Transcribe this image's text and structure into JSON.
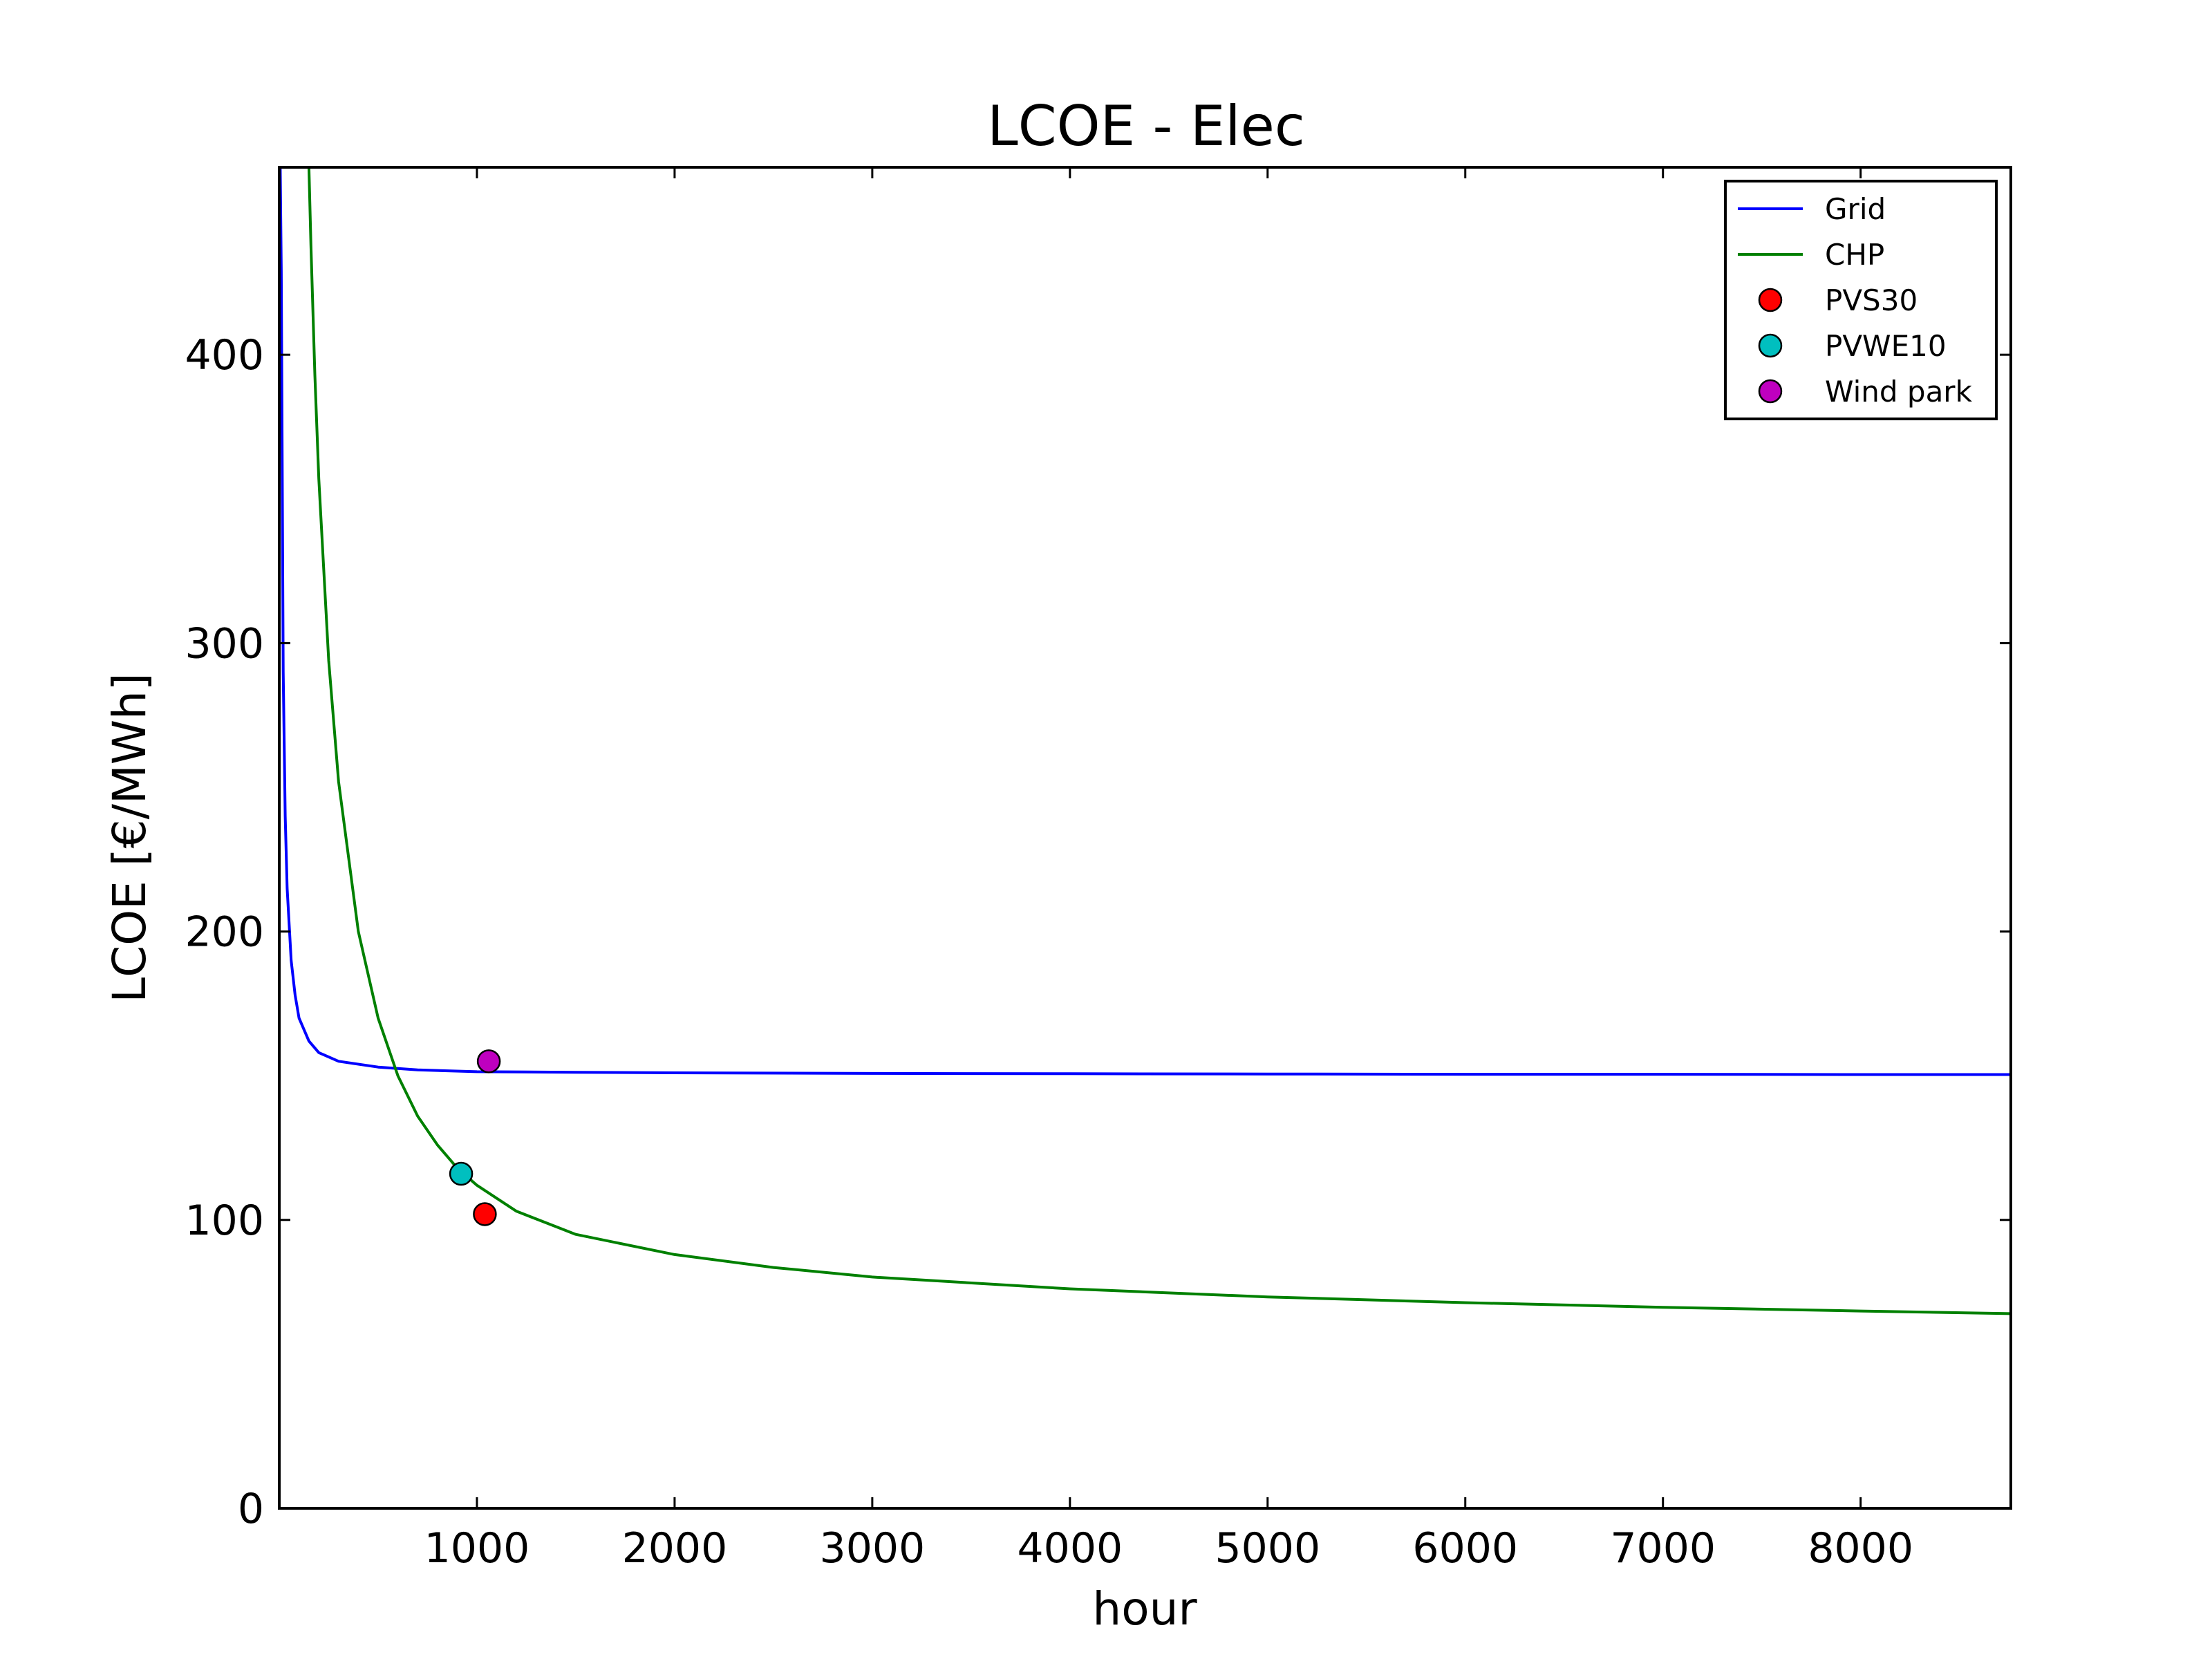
{
  "chart_data": {
    "type": "line",
    "title": "LCOE - Elec",
    "xlabel": "hour",
    "ylabel": "LCOE [€/MWh]",
    "xlim": [
      0,
      8760
    ],
    "ylim": [
      0,
      465
    ],
    "xticks": [
      1000,
      2000,
      3000,
      4000,
      5000,
      6000,
      7000,
      8000
    ],
    "yticks": [
      0,
      100,
      200,
      300,
      400
    ],
    "xtick_labels": [
      "1000",
      "2000",
      "3000",
      "4000",
      "5000",
      "6000",
      "7000",
      "8000"
    ],
    "ytick_labels": [
      "0",
      "100",
      "200",
      "300",
      "400"
    ],
    "grid": false,
    "legend_position": "top-right",
    "series": [
      {
        "name": "Grid",
        "kind": "line",
        "color": "#0000ff",
        "x": [
          5,
          10,
          20,
          30,
          40,
          60,
          80,
          100,
          150,
          200,
          300,
          500,
          700,
          1000,
          1500,
          2000,
          3000,
          4000,
          5000,
          6000,
          7000,
          8000,
          8760
        ],
        "y": [
          465,
          429,
          290,
          240,
          215,
          190,
          178,
          170,
          162,
          158,
          155,
          153,
          152,
          151.4,
          151.2,
          151.0,
          150.8,
          150.7,
          150.6,
          150.5,
          150.5,
          150.4,
          150.4
        ]
      },
      {
        "name": "CHP",
        "kind": "line",
        "color": "#008000",
        "x": [
          150,
          160,
          180,
          200,
          250,
          300,
          400,
          500,
          600,
          700,
          800,
          900,
          1000,
          1200,
          1500,
          2000,
          2500,
          3000,
          4000,
          5000,
          6000,
          7000,
          8000,
          8760
        ],
        "y": [
          465,
          438,
          393,
          357,
          294,
          252,
          200,
          170,
          150,
          136,
          126,
          118,
          112,
          103,
          95,
          88,
          83.5,
          80.2,
          76.1,
          73.3,
          71.3,
          69.7,
          68.4,
          67.5
        ]
      },
      {
        "name": "PVS30",
        "kind": "point",
        "color": "#ff0000",
        "x": [
          1040
        ],
        "y": [
          102
        ]
      },
      {
        "name": "PVWE10",
        "kind": "point",
        "color": "#00bfbf",
        "x": [
          920
        ],
        "y": [
          116
        ]
      },
      {
        "name": "Wind park",
        "kind": "point",
        "color": "#bf00bf",
        "x": [
          1060
        ],
        "y": [
          155
        ]
      }
    ]
  }
}
